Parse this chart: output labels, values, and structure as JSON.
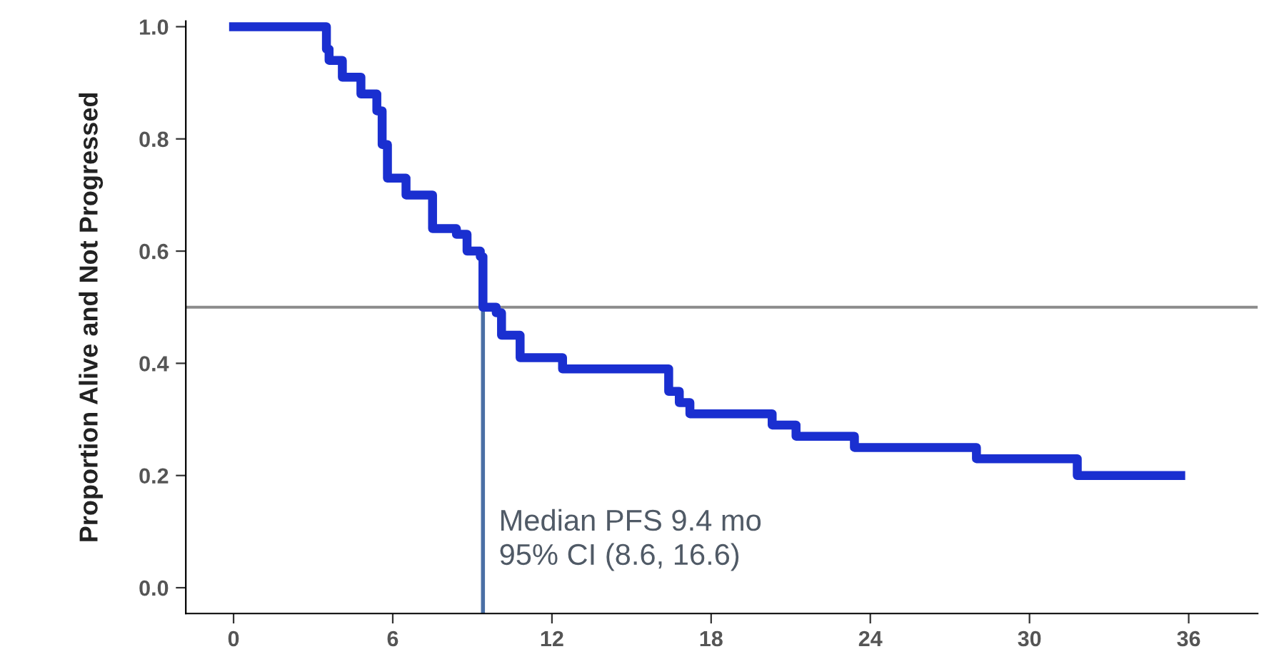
{
  "chart_data": {
    "type": "step",
    "ylabel": "Proportion Alive and Not Progressed",
    "series": [
      {
        "color": "#1a2fd0",
        "x": [
          0,
          3.5,
          3.6,
          4.1,
          4.8,
          5.4,
          5.6,
          5.8,
          6.5,
          7.5,
          8.4,
          8.8,
          9.3,
          9.4,
          9.9,
          10.1,
          10.8,
          12.4,
          16.4,
          16.8,
          17.2,
          20.3,
          21.2,
          23.4,
          28.0,
          31.8,
          35.7
        ],
        "values": [
          1.0,
          0.96,
          0.94,
          0.91,
          0.88,
          0.85,
          0.79,
          0.73,
          0.7,
          0.64,
          0.63,
          0.6,
          0.59,
          0.5,
          0.49,
          0.45,
          0.41,
          0.39,
          0.35,
          0.33,
          0.31,
          0.29,
          0.27,
          0.25,
          0.23,
          0.2,
          0.2
        ]
      }
    ],
    "xlim": [
      -1.8,
      38.6
    ],
    "xticks": [
      0,
      6,
      12,
      18,
      24,
      30,
      36
    ],
    "ylim": [
      -0.046,
      1.01
    ],
    "yticks": [
      {
        "value": 0,
        "label": "0.0"
      },
      0.2,
      0.4,
      0.6,
      0.8,
      {
        "value": 1,
        "label": "1.0"
      }
    ],
    "ref_lines": [
      {
        "axis": "y",
        "value": 0.5,
        "color": "#8c8c8c"
      },
      {
        "axis": "x",
        "value": 9.4,
        "color": "#4a6fa5"
      }
    ],
    "annotations": [
      "Median PFS 9.4 mo\n95% CI (8.6, 16.6)"
    ],
    "grid": false,
    "legend": false
  }
}
